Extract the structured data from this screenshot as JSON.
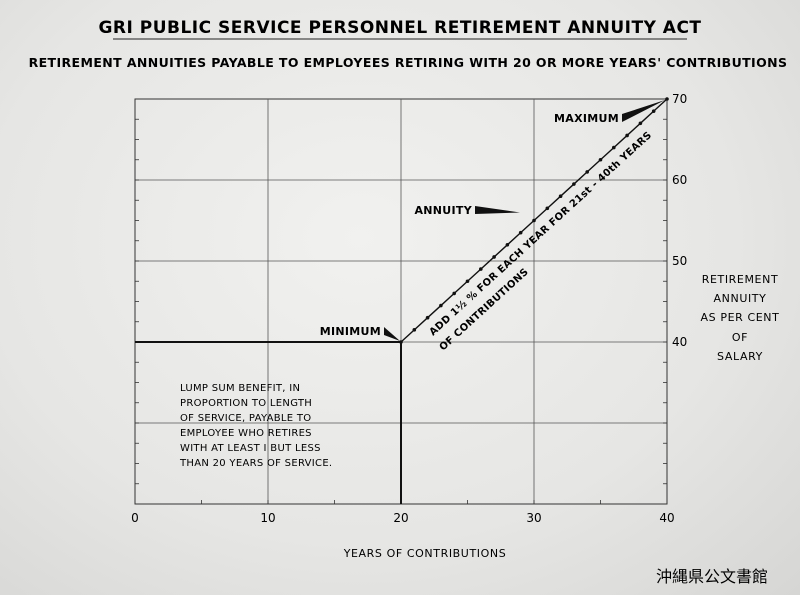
{
  "chart_data": {
    "type": "line",
    "title": "GRI PUBLIC SERVICE PERSONNEL RETIREMENT ANNUITY ACT",
    "subtitle": "RETIREMENT ANNUITIES PAYABLE TO EMPLOYEES RETIRING WITH 20 OR MORE YEARS' CONTRIBUTIONS",
    "xlabel": "YEARS OF CONTRIBUTIONS",
    "ylabel_lines": [
      "RETIREMENT",
      "ANNUITY",
      "AS PER CENT",
      "OF",
      "SALARY"
    ],
    "xlim": [
      0,
      40
    ],
    "ylim": [
      20,
      70
    ],
    "x_ticks": [
      0,
      10,
      20,
      30,
      40
    ],
    "y_tick_labels": [
      40,
      50,
      60,
      70
    ],
    "grid": true,
    "series": [
      {
        "x": [
          20,
          21,
          22,
          23,
          24,
          25,
          26,
          27,
          28,
          29,
          30,
          31,
          32,
          33,
          34,
          35,
          36,
          37,
          38,
          39,
          40
        ],
        "y": [
          40,
          41.5,
          43,
          44.5,
          46,
          47.5,
          49,
          50.5,
          52,
          53.5,
          55,
          56.5,
          58,
          59.5,
          61,
          62.5,
          64,
          65.5,
          67,
          68.5,
          70
        ]
      }
    ],
    "baseline": {
      "x": [
        0,
        20
      ],
      "y": [
        40,
        40
      ]
    },
    "annotations": {
      "minimum": "MINIMUM",
      "annuity": "ANNUITY",
      "maximum": "MAXIMUM",
      "line_note_1": "ADD 1½ % FOR EACH YEAR FOR 21st - 40th YEARS",
      "line_note_2": "OF CONTRIBUTIONS",
      "lump_sum_lines": [
        "LUMP SUM BENEFIT, IN",
        "PROPORTION TO LENGTH",
        "OF SERVICE, PAYABLE TO",
        "EMPLOYEE WHO RETIRES",
        "WITH  AT LEAST I BUT LESS",
        "THAN 20 YEARS OF SERVICE."
      ]
    }
  },
  "stamp": "沖縄県公文書館"
}
